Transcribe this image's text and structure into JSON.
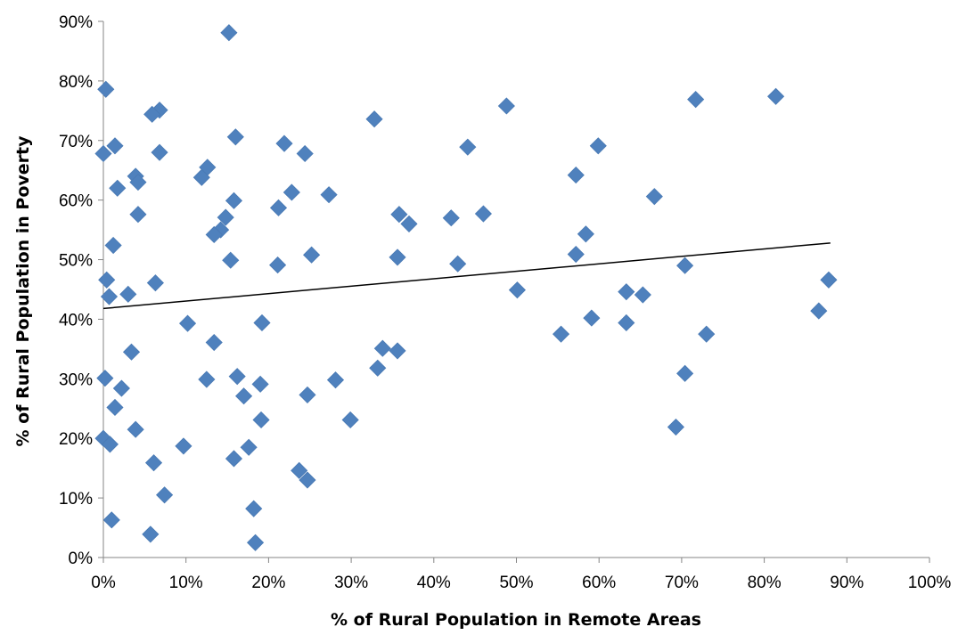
{
  "chart_data": {
    "type": "scatter",
    "title": "",
    "xlabel": "% of Rural Population in Remote Areas",
    "ylabel": "% of Rural Population in Poverty",
    "xlim": [
      0,
      100
    ],
    "ylim": [
      0,
      90
    ],
    "x_ticks": [
      "0%",
      "10%",
      "20%",
      "30%",
      "40%",
      "50%",
      "60%",
      "70%",
      "80%",
      "90%",
      "100%"
    ],
    "y_ticks": [
      "0%",
      "10%",
      "20%",
      "30%",
      "40%",
      "50%",
      "60%",
      "70%",
      "80%",
      "90%"
    ],
    "grid": false,
    "legend": "none",
    "marker_color": "#4F81BD",
    "marker_shape": "diamond",
    "trendline": {
      "type": "linear",
      "color": "#000000",
      "points": [
        [
          0,
          41.8
        ],
        [
          88,
          52.8
        ]
      ]
    },
    "series": [
      {
        "points": [
          [
            15.2,
            88.1
          ],
          [
            0.3,
            78.6
          ],
          [
            81.4,
            77.4
          ],
          [
            71.7,
            76.9
          ],
          [
            48.8,
            75.8
          ],
          [
            6.8,
            75.1
          ],
          [
            5.9,
            74.4
          ],
          [
            32.8,
            73.6
          ],
          [
            16.0,
            70.6
          ],
          [
            21.9,
            69.5
          ],
          [
            1.4,
            69.1
          ],
          [
            59.9,
            69.1
          ],
          [
            44.1,
            68.9
          ],
          [
            6.8,
            68.0
          ],
          [
            0.0,
            67.8
          ],
          [
            24.4,
            67.8
          ],
          [
            12.6,
            65.5
          ],
          [
            57.2,
            64.2
          ],
          [
            3.9,
            64.0
          ],
          [
            11.9,
            63.8
          ],
          [
            4.2,
            63.0
          ],
          [
            1.7,
            62.0
          ],
          [
            22.8,
            61.3
          ],
          [
            27.3,
            60.9
          ],
          [
            66.7,
            60.6
          ],
          [
            15.8,
            59.9
          ],
          [
            21.2,
            58.7
          ],
          [
            46.0,
            57.7
          ],
          [
            4.2,
            57.6
          ],
          [
            35.8,
            57.6
          ],
          [
            14.8,
            57.1
          ],
          [
            42.1,
            57.0
          ],
          [
            37.0,
            56.0
          ],
          [
            14.2,
            55.0
          ],
          [
            13.4,
            54.2
          ],
          [
            58.4,
            54.3
          ],
          [
            1.2,
            52.4
          ],
          [
            25.2,
            50.8
          ],
          [
            57.2,
            50.9
          ],
          [
            35.6,
            50.4
          ],
          [
            15.4,
            49.9
          ],
          [
            21.1,
            49.1
          ],
          [
            42.9,
            49.3
          ],
          [
            70.4,
            49.0
          ],
          [
            87.8,
            46.6
          ],
          [
            0.4,
            46.6
          ],
          [
            6.3,
            46.1
          ],
          [
            50.1,
            44.9
          ],
          [
            63.3,
            44.6
          ],
          [
            3.0,
            44.2
          ],
          [
            65.3,
            44.1
          ],
          [
            0.7,
            43.8
          ],
          [
            86.6,
            41.4
          ],
          [
            59.1,
            40.2
          ],
          [
            63.3,
            39.4
          ],
          [
            10.2,
            39.3
          ],
          [
            19.2,
            39.4
          ],
          [
            55.4,
            37.5
          ],
          [
            73.0,
            37.5
          ],
          [
            13.4,
            36.1
          ],
          [
            33.8,
            35.1
          ],
          [
            35.6,
            34.7
          ],
          [
            3.4,
            34.5
          ],
          [
            33.2,
            31.8
          ],
          [
            70.4,
            30.9
          ],
          [
            16.2,
            30.4
          ],
          [
            0.2,
            30.1
          ],
          [
            12.5,
            29.9
          ],
          [
            28.1,
            29.8
          ],
          [
            19.0,
            29.1
          ],
          [
            2.2,
            28.4
          ],
          [
            17.0,
            27.1
          ],
          [
            24.7,
            27.3
          ],
          [
            1.4,
            25.2
          ],
          [
            29.9,
            23.1
          ],
          [
            19.1,
            23.1
          ],
          [
            69.3,
            21.9
          ],
          [
            3.9,
            21.5
          ],
          [
            0.0,
            20.0
          ],
          [
            0.8,
            19.0
          ],
          [
            9.7,
            18.7
          ],
          [
            17.6,
            18.5
          ],
          [
            15.8,
            16.6
          ],
          [
            6.1,
            15.9
          ],
          [
            23.7,
            14.6
          ],
          [
            24.7,
            13.0
          ],
          [
            7.4,
            10.5
          ],
          [
            18.2,
            8.2
          ],
          [
            1.0,
            6.3
          ],
          [
            5.7,
            3.9
          ],
          [
            18.4,
            2.5
          ]
        ]
      }
    ]
  }
}
